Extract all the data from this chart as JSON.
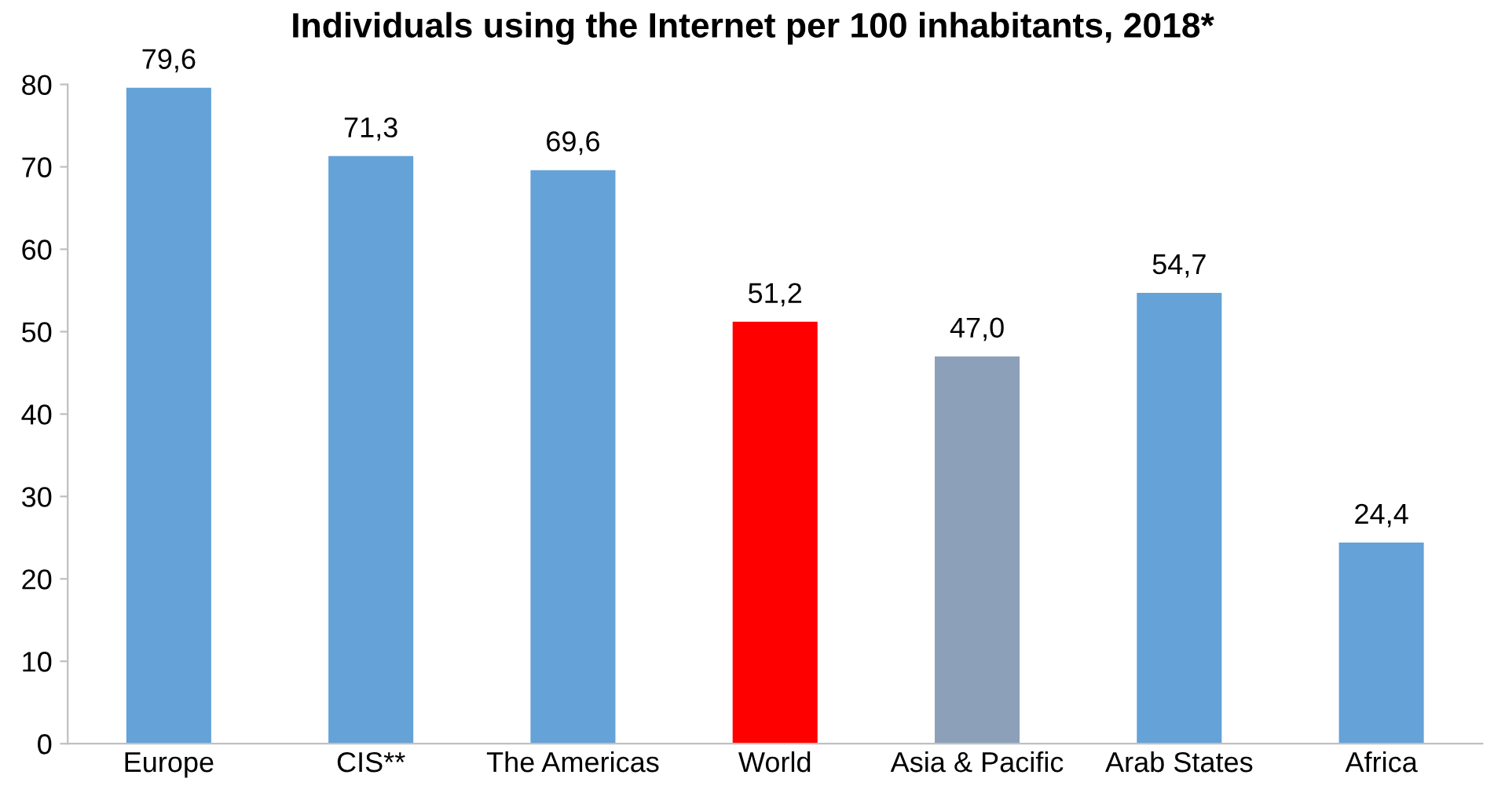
{
  "chart_data": {
    "type": "bar",
    "title": "Individuals using the Internet per 100 inhabitants, 2018*",
    "categories": [
      "Europe",
      "CIS**",
      "The Americas",
      "World",
      "Asia & Pacific",
      "Arab States",
      "Africa"
    ],
    "values": [
      79.6,
      71.3,
      69.6,
      51.2,
      47.0,
      54.7,
      24.4
    ],
    "colors": [
      "#64a2d8",
      "#64a2d8",
      "#64a2d8",
      "#ff0000",
      "#8da0b9",
      "#64a2d8",
      "#64a2d8"
    ],
    "value_labels": [
      "79,6",
      "71,3",
      "69,6",
      "51,2",
      "47,0",
      "54,7",
      "24,4"
    ],
    "ylim": [
      0,
      80
    ],
    "yticks": [
      0,
      10,
      20,
      30,
      40,
      50,
      60,
      70,
      80
    ],
    "grid": false,
    "legend": false
  }
}
